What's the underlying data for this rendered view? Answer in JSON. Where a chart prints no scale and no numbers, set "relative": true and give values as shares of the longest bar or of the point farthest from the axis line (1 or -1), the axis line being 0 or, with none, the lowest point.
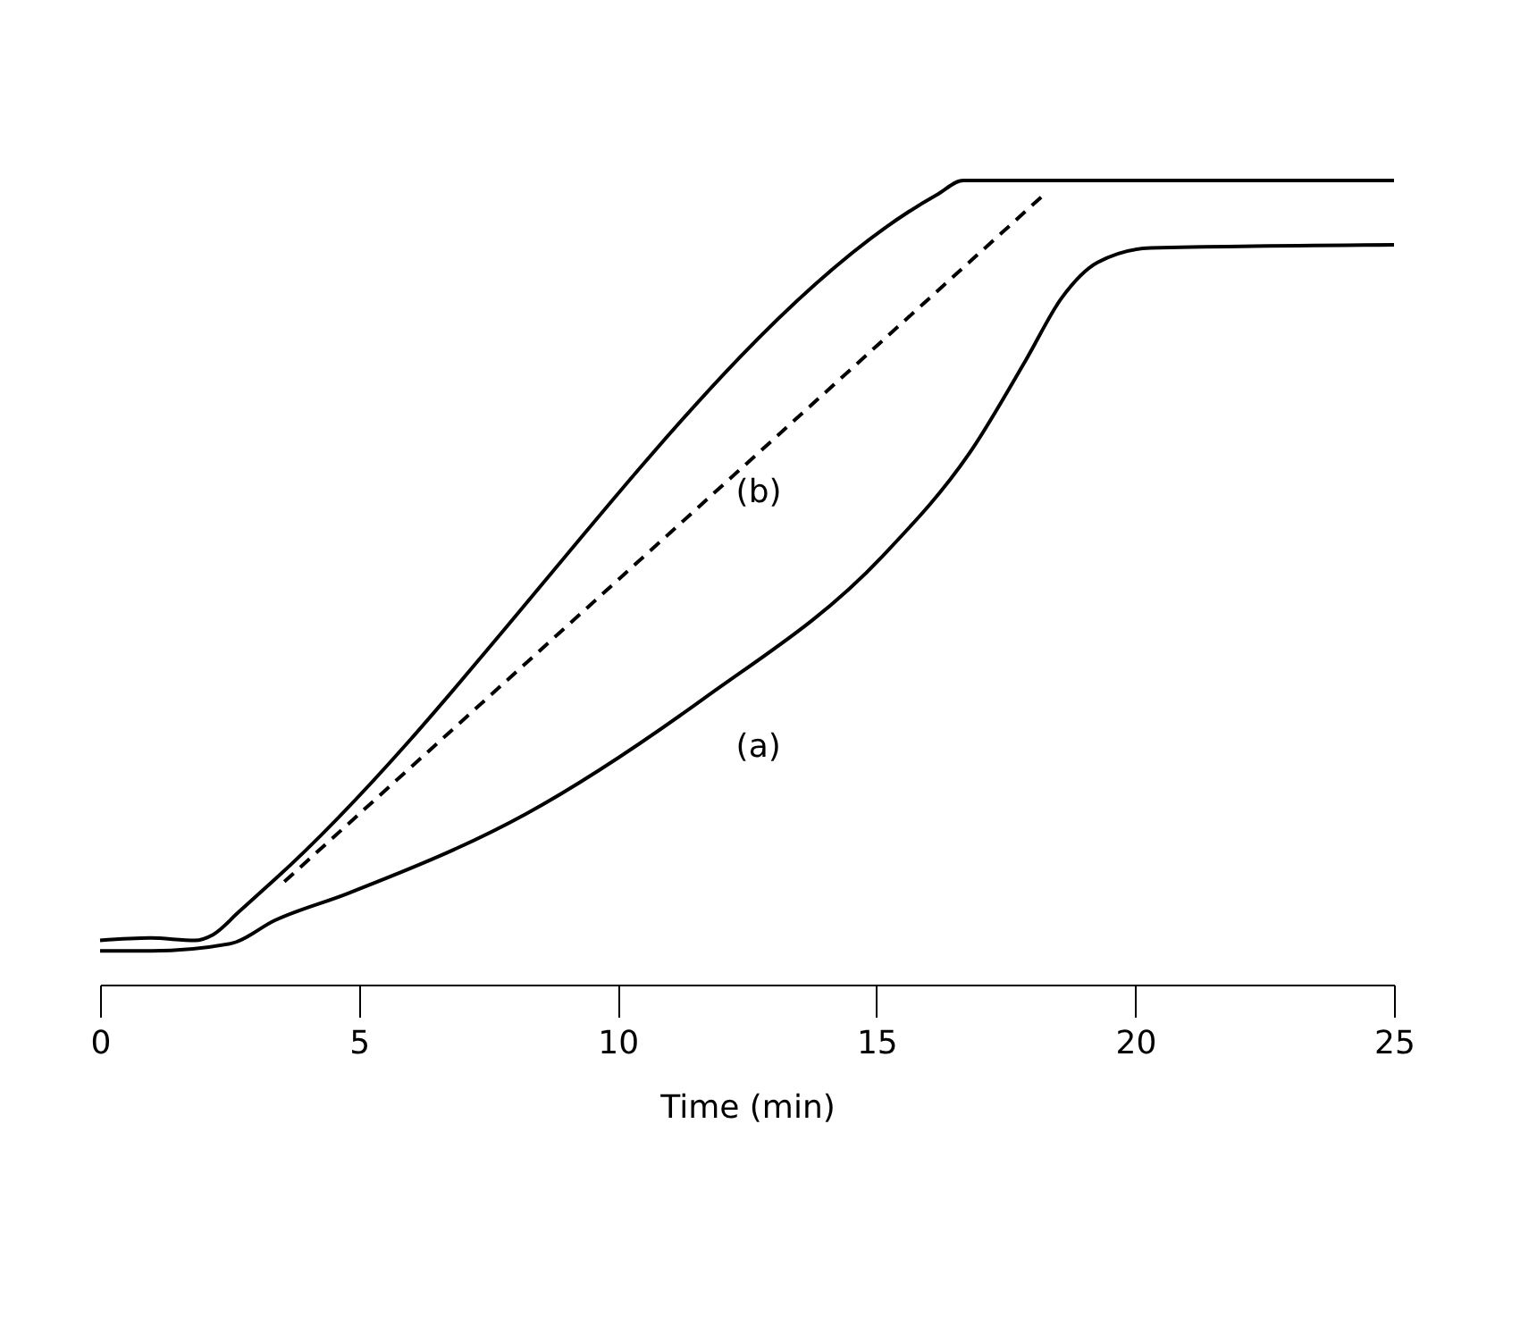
{
  "chart_data": {
    "type": "line",
    "xlabel": "Time (min)",
    "relative": true,
    "xlim": [
      0,
      25
    ],
    "xticks": [
      0,
      5,
      10,
      15,
      20,
      25
    ],
    "grid": false,
    "legend": false,
    "tick_labels": "x",
    "series": [
      {
        "name": "(a)",
        "color": "#000000",
        "line_style": "solid",
        "x": [
          0,
          1.0,
          2.52,
          3.38,
          4.77,
          8.22,
          11.67,
          15.12,
          16.85,
          17.89,
          18.58,
          19.27,
          20.3,
          25
        ],
        "values": [
          0.042,
          0.042,
          0.051,
          0.08,
          0.113,
          0.212,
          0.356,
          0.533,
          0.666,
          0.777,
          0.854,
          0.898,
          0.916,
          0.92
        ]
      },
      {
        "name": "(b)",
        "color": "#000000",
        "line_style": "solid",
        "x": [
          0,
          0.97,
          1.83,
          2.18,
          2.69,
          3.38,
          16.16,
          16.68,
          17.54,
          25
        ],
        "values": [
          0.055,
          0.058,
          0.055,
          0.062,
          0.091,
          0.131,
          0.982,
          1.0,
          1.0,
          1.0
        ]
      },
      {
        "color": "#000000",
        "line_style": "dashed",
        "x": [
          3.56,
          18.23
        ],
        "values": [
          0.128,
          0.982
        ]
      }
    ]
  }
}
